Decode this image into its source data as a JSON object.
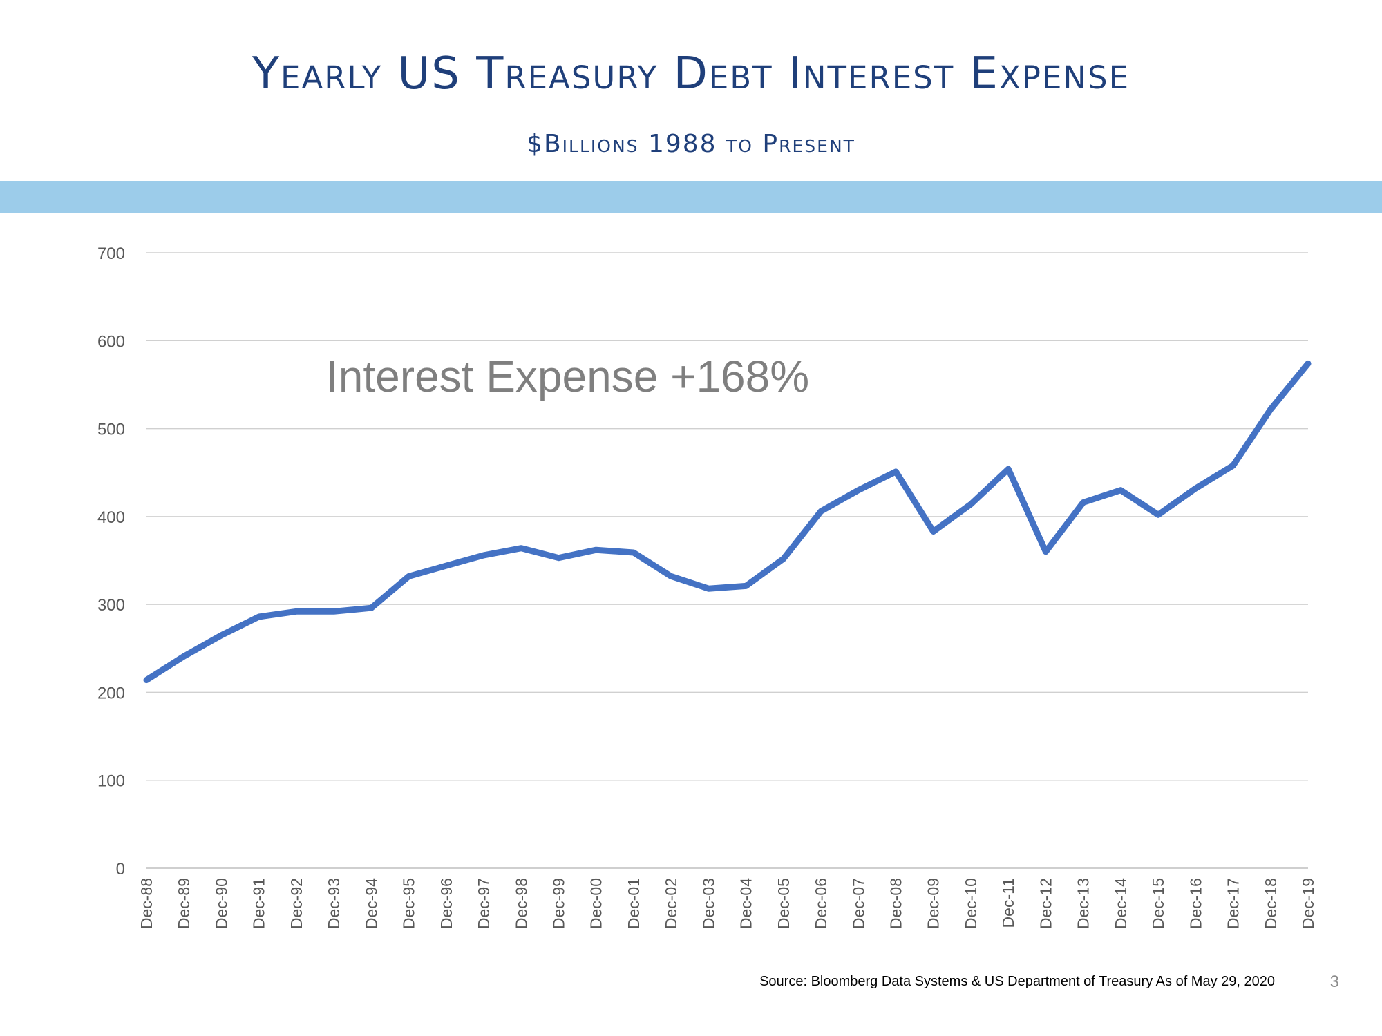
{
  "header": {
    "title": "Yearly US Treasury Debt Interest Expense",
    "subtitle": "$Billions 1988 to Present"
  },
  "colors": {
    "title": "#1f3f7a",
    "band": "#9cccea",
    "line": "#4472c4",
    "grid": "#d0d0d0",
    "annotation": "#7f7f7f"
  },
  "chart_data": {
    "type": "line",
    "title": "",
    "xlabel": "",
    "ylabel": "",
    "ylim": [
      0,
      700
    ],
    "yticks": [
      0,
      100,
      200,
      300,
      400,
      500,
      600,
      700
    ],
    "grid": true,
    "legend": "none",
    "categories": [
      "Dec-88",
      "Dec-89",
      "Dec-90",
      "Dec-91",
      "Dec-92",
      "Dec-93",
      "Dec-94",
      "Dec-95",
      "Dec-96",
      "Dec-97",
      "Dec-98",
      "Dec-99",
      "Dec-00",
      "Dec-01",
      "Dec-02",
      "Dec-03",
      "Dec-04",
      "Dec-05",
      "Dec-06",
      "Dec-07",
      "Dec-08",
      "Dec-09",
      "Dec-10",
      "Dec-11",
      "Dec-12",
      "Dec-13",
      "Dec-14",
      "Dec-15",
      "Dec-16",
      "Dec-17",
      "Dec-18",
      "Dec-19"
    ],
    "series": [
      {
        "values": [
          214,
          241,
          265,
          286,
          292,
          292,
          296,
          332,
          344,
          356,
          364,
          353,
          362,
          359,
          332,
          318,
          321,
          352,
          406,
          430,
          451,
          383,
          414,
          454,
          360,
          416,
          430,
          402,
          432,
          458,
          522,
          574
        ]
      }
    ],
    "annotation": "Interest Expense +168%"
  },
  "footer": {
    "source": "Source:  Bloomberg Data Systems & US Department of Treasury As of May 29, 2020",
    "page_number": "3"
  }
}
